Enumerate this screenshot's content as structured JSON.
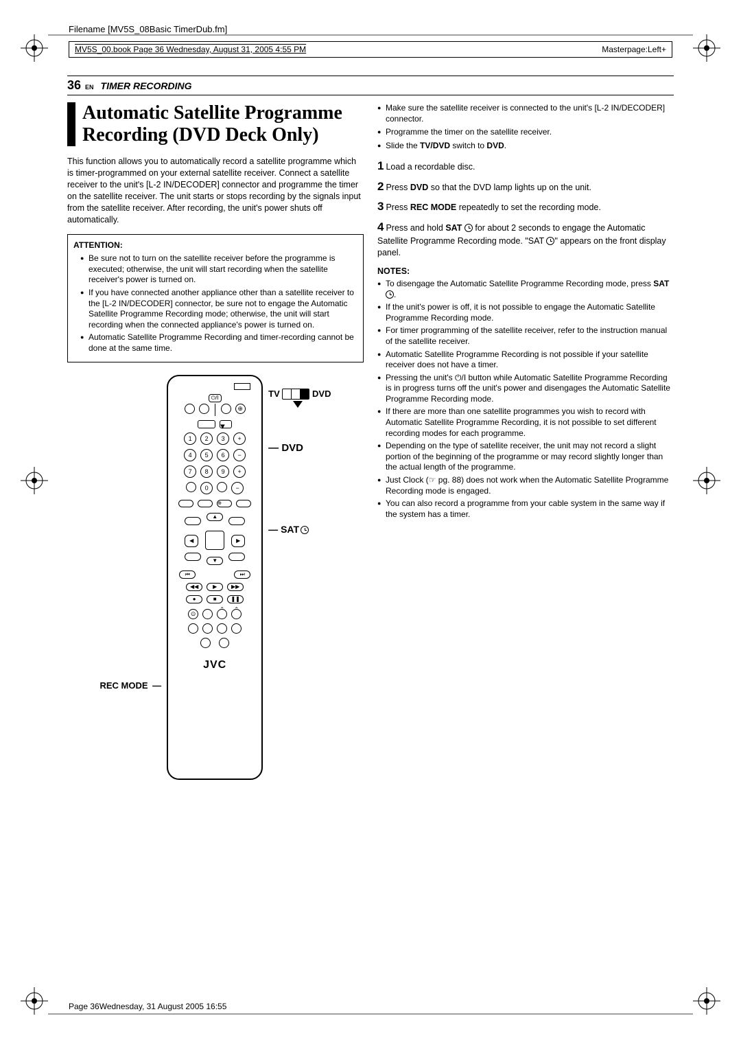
{
  "meta": {
    "filename": "Filename [MV5S_08Basic TimerDub.fm]",
    "book_info": "MV5S_00.book  Page 36  Wednesday, August 31, 2005  4:55 PM",
    "masterpage": "Masterpage:Left+",
    "footer": "Page 36Wednesday, 31 August 2005  16:55"
  },
  "header": {
    "page_num": "36",
    "lang": "EN",
    "section": "TIMER RECORDING"
  },
  "title": "Automatic Satellite Programme Recording (DVD Deck Only)",
  "intro": "This function allows you to automatically record a satellite programme which is timer-programmed on your external satellite receiver. Connect a satellite receiver to the unit's [L-2 IN/DECODER] connector and programme the timer on the satellite receiver. The unit starts or stops recording by the signals input from the satellite receiver. After recording, the unit's power shuts off automatically.",
  "attention": {
    "title": "ATTENTION:",
    "items": [
      "Be sure not to turn on the satellite receiver before the programme is executed; otherwise, the unit will start recording when the satellite receiver's power is turned on.",
      "If you have connected another appliance other than a satellite receiver to the [L-2 IN/DECODER] connector, be sure not to engage the Automatic Satellite Programme Recording mode; otherwise, the unit will start recording when the connected appliance's power is turned on.",
      "Automatic Satellite Programme Recording and timer-recording cannot be done at the same time."
    ]
  },
  "remote": {
    "left_label": "REC MODE",
    "right_labels": {
      "tv": "TV",
      "dvd_switch": "DVD",
      "dvd": "DVD",
      "sat": "SAT"
    },
    "logo": "JVC",
    "keypad": [
      "1",
      "2",
      "3",
      "4",
      "5",
      "6",
      "7",
      "8",
      "9",
      "0"
    ]
  },
  "prep": [
    "Make sure the satellite receiver is connected to the unit's [L-2 IN/DECODER] connector.",
    "Programme the timer on the satellite receiver.",
    "Slide the <b>TV/DVD</b> switch to <b>DVD</b>."
  ],
  "steps": [
    {
      "n": "1",
      "text": "Load a recordable disc."
    },
    {
      "n": "2",
      "text": "Press <b>DVD</b> so that the DVD lamp lights up on the unit."
    },
    {
      "n": "3",
      "text": "Press <b>REC MODE</b> repeatedly to set the recording mode."
    },
    {
      "n": "4",
      "text": "Press and hold <b>SAT</b> <span class='clock-icon'></span> for about 2 seconds to engage the Automatic Satellite Programme Recording mode. \"SAT <span class='clock-icon'></span>\" appears on the front display panel."
    }
  ],
  "notes": {
    "title": "NOTES:",
    "items": [
      "To disengage the Automatic Satellite Programme Recording mode, press <b>SAT</b> <span class='clock-icon'></span>.",
      "If the unit's power is off, it is not possible to engage the Automatic Satellite Programme Recording mode.",
      "For timer programming of the satellite receiver, refer to the instruction manual of the satellite receiver.",
      "Automatic Satellite Programme Recording is not possible if your satellite receiver does not have a timer.",
      "Pressing the unit's ⏻/I button while Automatic Satellite Programme Recording is in progress turns off the unit's power and disengages the Automatic Satellite Programme Recording mode.",
      "If there are more than one satellite programmes you wish to record with Automatic Satellite Programme Recording, it is not possible to set different recording modes for each programme.",
      "Depending on the type of satellite receiver, the unit may not record a slight portion of the beginning of the programme or may record slightly longer than the actual length of the programme.",
      "Just Clock (<span class='ref-icon'>☞</span> pg. 88) does not work when the Automatic Satellite Programme Recording mode is engaged.",
      "You can also record a programme from your cable system in the same way if the system has a timer."
    ]
  }
}
